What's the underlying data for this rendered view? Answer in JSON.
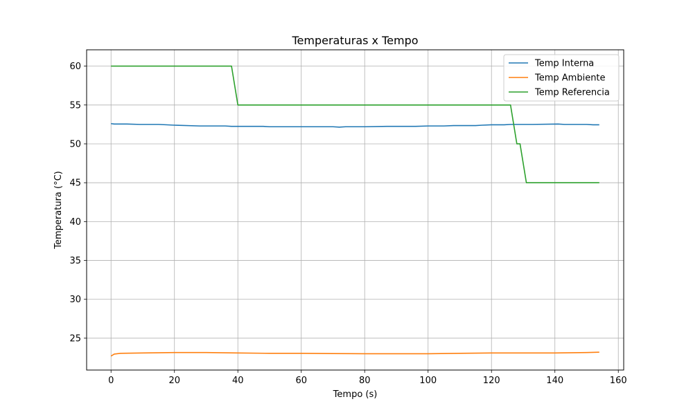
{
  "chart_data": {
    "type": "line",
    "title": "Temperaturas x Tempo",
    "xlabel": "Tempo (s)",
    "ylabel": "Temperatura (°C)",
    "xlim": [
      -7.7,
      161.7
    ],
    "ylim": [
      20.9,
      62.1
    ],
    "xticks": [
      0,
      20,
      40,
      60,
      80,
      100,
      120,
      140,
      160
    ],
    "yticks": [
      25,
      30,
      35,
      40,
      45,
      50,
      55,
      60
    ],
    "grid": true,
    "legend_position": "top-right",
    "series": [
      {
        "name": "Temp Interna",
        "color": "#1f77b4",
        "x": [
          0,
          1,
          5,
          9,
          15,
          20,
          28,
          36,
          38,
          40,
          48,
          50,
          60,
          70,
          72,
          74,
          80,
          87,
          96,
          100,
          105,
          108,
          115,
          117,
          120,
          124,
          126,
          133,
          141,
          143,
          150,
          152,
          154
        ],
        "y": [
          52.6,
          52.55,
          52.55,
          52.5,
          52.5,
          52.4,
          52.3,
          52.3,
          52.25,
          52.25,
          52.25,
          52.2,
          52.2,
          52.2,
          52.15,
          52.2,
          52.2,
          52.25,
          52.25,
          52.3,
          52.3,
          52.35,
          52.35,
          52.4,
          52.45,
          52.45,
          52.5,
          52.5,
          52.55,
          52.5,
          52.5,
          52.45,
          52.45
        ]
      },
      {
        "name": "Temp Ambiente",
        "color": "#ff7f0e",
        "x": [
          0,
          1,
          3,
          10,
          20,
          30,
          40,
          50,
          60,
          70,
          80,
          90,
          100,
          110,
          120,
          130,
          140,
          150,
          154
        ],
        "y": [
          22.7,
          22.95,
          23.05,
          23.1,
          23.15,
          23.15,
          23.1,
          23.05,
          23.05,
          23.02,
          23.0,
          23.0,
          23.0,
          23.05,
          23.1,
          23.1,
          23.1,
          23.15,
          23.2
        ]
      },
      {
        "name": "Temp Referencia",
        "color": "#2ca02c",
        "x": [
          0,
          38,
          40,
          126,
          128,
          129,
          131,
          154
        ],
        "y": [
          60,
          60,
          55,
          55,
          50,
          50,
          45,
          45
        ]
      }
    ]
  }
}
